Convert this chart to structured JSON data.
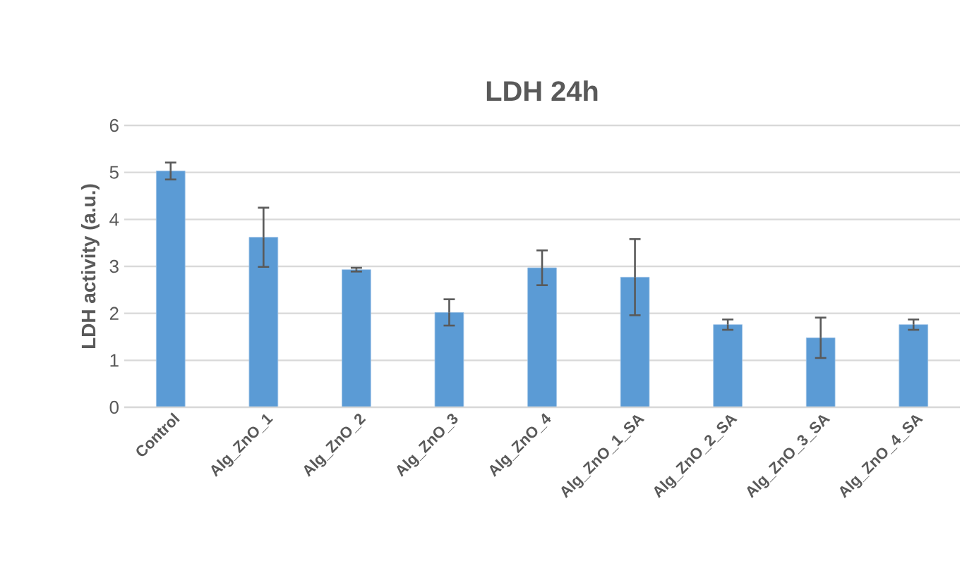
{
  "chart_data": {
    "type": "bar",
    "title": "LDH 24h",
    "ylabel": "LDH activity (a.u.)",
    "categories": [
      "Control",
      "Alg_ZnO_1",
      "Alg_ZnO_2",
      "Alg_ZnO_3",
      "Alg_ZnO_4",
      "Alg_ZnO_1_SA",
      "Alg_ZnO_2_SA",
      "Alg_ZnO_3_SA",
      "Alg_ZnO_4_SA"
    ],
    "values": [
      5.03,
      3.62,
      2.93,
      2.02,
      2.97,
      2.77,
      1.76,
      1.48,
      1.76
    ],
    "errors": [
      0.18,
      0.63,
      0.04,
      0.28,
      0.37,
      0.81,
      0.11,
      0.43,
      0.11
    ],
    "color": "#5b9bd5",
    "ylim": [
      0,
      6
    ],
    "yticks": [
      0,
      1,
      2,
      3,
      4,
      5,
      6
    ],
    "grid": "y"
  }
}
